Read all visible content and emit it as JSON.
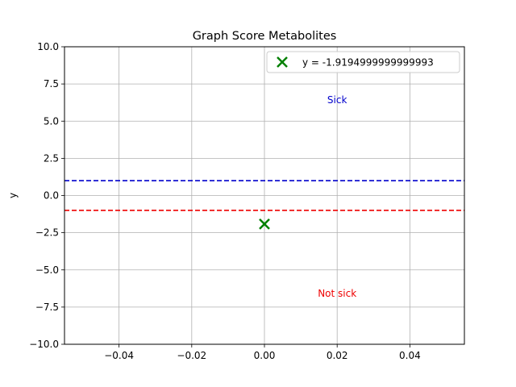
{
  "chart_data": {
    "type": "scatter",
    "title": "Graph Score Metabolites",
    "xlabel": "",
    "ylabel": "y",
    "xlim": [
      -0.055,
      0.055
    ],
    "ylim": [
      -10,
      10
    ],
    "xticks": [
      -0.04,
      -0.02,
      0.0,
      0.02,
      0.04
    ],
    "xtick_labels": [
      "−0.04",
      "−0.02",
      "0.00",
      "0.02",
      "0.04"
    ],
    "yticks": [
      -10,
      -7.5,
      -5,
      -2.5,
      0,
      2.5,
      5,
      7.5,
      10
    ],
    "ytick_labels": [
      "−10.0",
      "−7.5",
      "−5.0",
      "−2.5",
      "0.0",
      "2.5",
      "5.0",
      "7.5",
      "10.0"
    ],
    "grid": true,
    "legend_position": "top-right",
    "series": [
      {
        "name": "y = -1.9194999999999993",
        "marker": "x",
        "color": "#008000",
        "points": [
          {
            "x": 0.0,
            "y": -1.9194999999999993
          }
        ]
      }
    ],
    "reference_lines": [
      {
        "y": 1.0,
        "color": "#0000cc",
        "style": "dashed"
      },
      {
        "y": -1.0,
        "color": "#ee0000",
        "style": "dashed"
      }
    ],
    "annotations": [
      {
        "text": "Sick",
        "x": 0.02,
        "y": 6.2,
        "color": "#0000cc"
      },
      {
        "text": "Not sick",
        "x": 0.02,
        "y": -6.8,
        "color": "#ee0000"
      }
    ]
  }
}
